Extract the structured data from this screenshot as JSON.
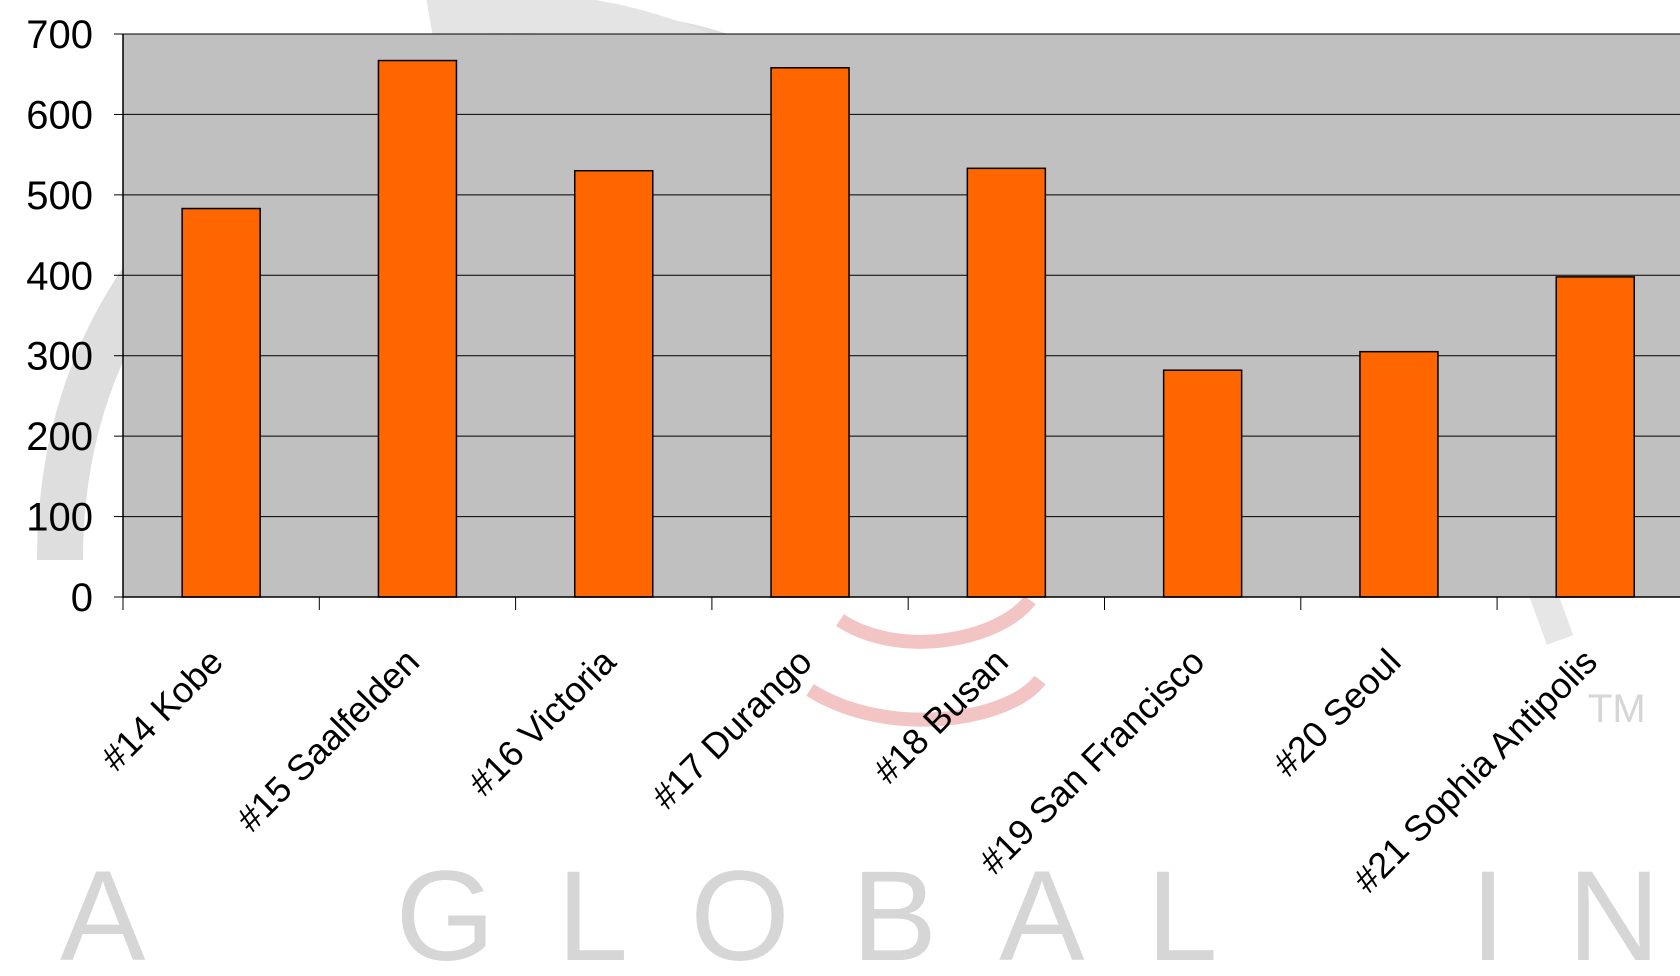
{
  "watermark": {
    "text": "A  GLOBAL  INITIATIV",
    "tm": "TM"
  },
  "chart_data": {
    "type": "bar",
    "categories": [
      "#14 Kobe",
      "#15 Saalfelden",
      "#16 Victoria",
      "#17 Durango",
      "#18 Busan",
      "#19 San Francisco",
      "#20 Seoul",
      "#21 Sophia Antipolis"
    ],
    "values": [
      483,
      667,
      530,
      658,
      533,
      282,
      305,
      398
    ],
    "ylim": [
      0,
      700
    ],
    "yticks": [
      0,
      100,
      200,
      300,
      400,
      500,
      600,
      700
    ],
    "grid": true,
    "legend": "none",
    "colors": {
      "bar": "#FF6600",
      "plot_background": "#C0C0C0",
      "watermark": "#D3D3D3",
      "watermark_accent": "#F3B8B8"
    }
  }
}
